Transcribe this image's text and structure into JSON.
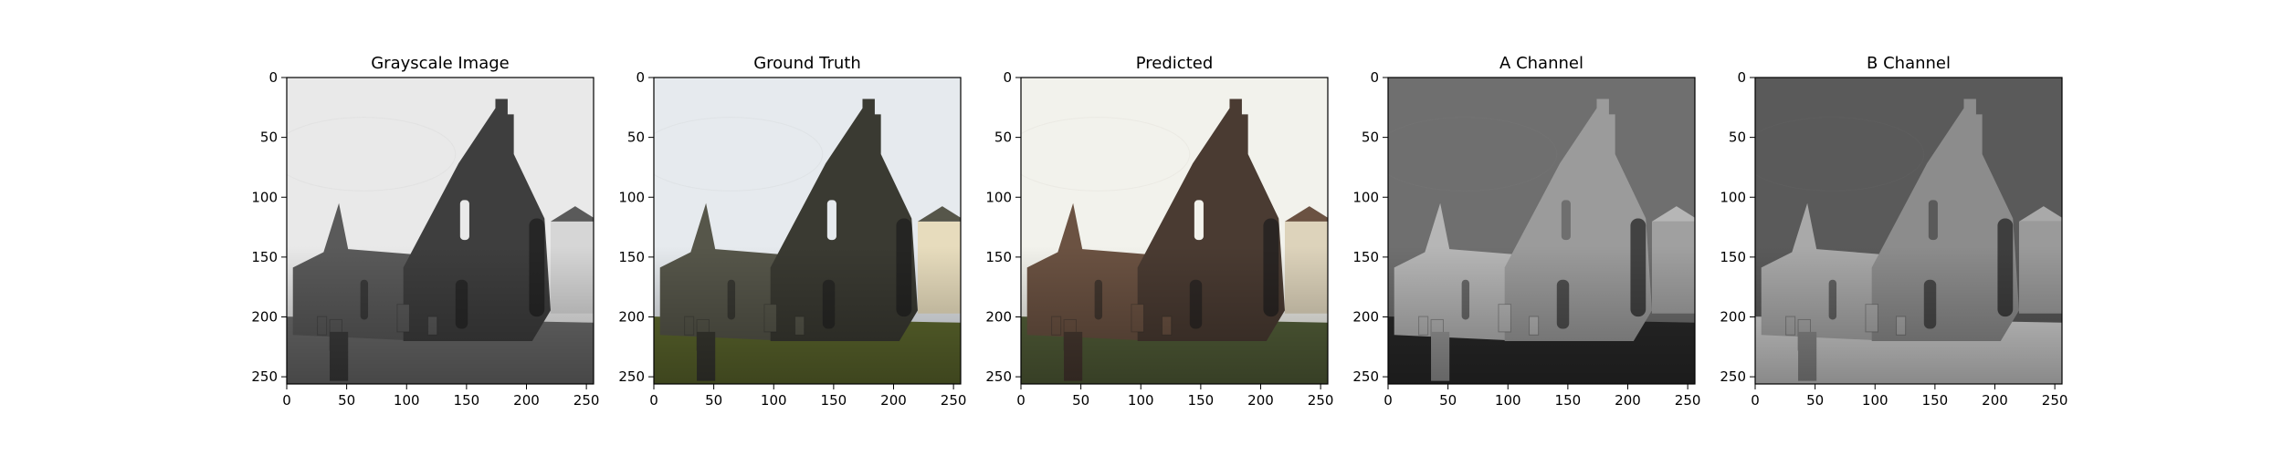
{
  "figure": {
    "panels": [
      {
        "id": "grayscale",
        "title": "Grayscale Image",
        "colors": {
          "sky": "#e9e9e9",
          "ruin_dark": "#3e3e3e",
          "ruin_mid": "#5a5a5a",
          "ground": "#6d6d6d",
          "house": "#d6d6d6"
        }
      },
      {
        "id": "ground-truth",
        "title": "Ground Truth",
        "colors": {
          "sky": "#e6eaee",
          "ruin_dark": "#3a3a32",
          "ruin_mid": "#56564a",
          "ground": "#5f6a2e",
          "house": "#e7dcbd"
        }
      },
      {
        "id": "predicted",
        "title": "Predicted",
        "colors": {
          "sky": "#f2f2ec",
          "ruin_dark": "#4a3b32",
          "ruin_mid": "#6b5242",
          "ground": "#55613a",
          "house": "#ddd3bb"
        }
      },
      {
        "id": "a-channel",
        "title": "A Channel",
        "colors": {
          "sky": "#6f6f6f",
          "ruin_dark": "#9b9b9b",
          "ruin_mid": "#b6b6b6",
          "ground": "#2a2a2a",
          "house": "#a0a0a0"
        }
      },
      {
        "id": "b-channel",
        "title": "B Channel",
        "colors": {
          "sky": "#5a5a5a",
          "ruin_dark": "#8c8c8c",
          "ruin_mid": "#a9a9a9",
          "ground": "#d3d3d3",
          "house": "#9a9a9a"
        }
      }
    ],
    "x_ticks": [
      "0",
      "50",
      "100",
      "150",
      "200",
      "250"
    ],
    "y_ticks": [
      "0",
      "50",
      "100",
      "150",
      "200",
      "250"
    ],
    "image_extent": [
      0,
      256
    ]
  }
}
